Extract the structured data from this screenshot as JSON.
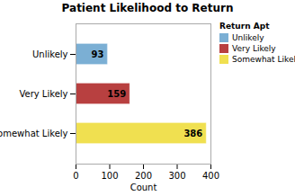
{
  "chart_data": {
    "type": "bar",
    "orientation": "horizontal",
    "title": "Patient Likelihood to Return",
    "categories": [
      "Somewhat Likely",
      "Very Likely",
      "Unlikely"
    ],
    "values": [
      386,
      159,
      93
    ],
    "colors": [
      "#f0e050",
      "#b84040",
      "#7bafd4"
    ],
    "xlabel": "Count",
    "xlim": [
      0,
      400
    ],
    "xticks": [
      0,
      100,
      200,
      300,
      400
    ],
    "grid": false,
    "data_labels": true,
    "legend": "upper right",
    "legend_title": "Return Apt",
    "legend_labels": [
      "Unlikely",
      "Very Likely",
      "Somewhat Likely"
    ],
    "legend_colors": [
      "#7bafd4",
      "#b84040",
      "#f0e050"
    ]
  }
}
